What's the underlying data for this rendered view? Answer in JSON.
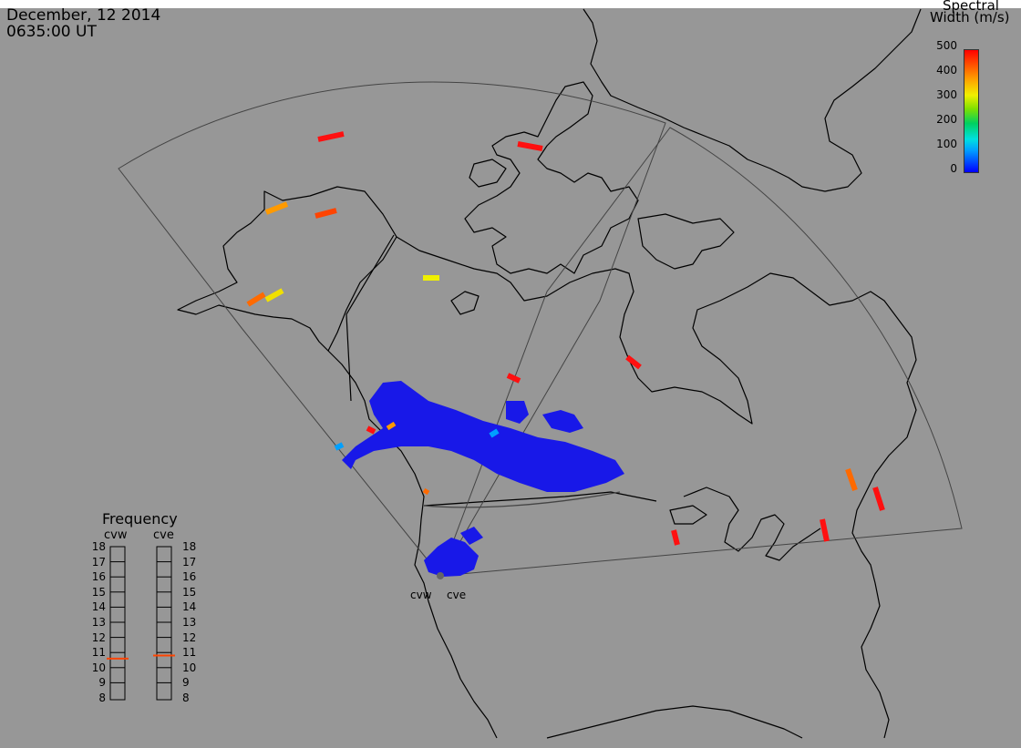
{
  "header": {
    "date": "December, 12 2014",
    "time": "0635:00 UT"
  },
  "colorbar": {
    "title_line1": "Spectral",
    "title_line2": "Width (m/s)",
    "ticks": [
      "500",
      "400",
      "300",
      "200",
      "100",
      "0"
    ],
    "range": [
      0,
      500
    ],
    "colors": [
      "#0000ff",
      "#00a0ff",
      "#00e0e0",
      "#00d060",
      "#80e000",
      "#f0f000",
      "#ff9a00",
      "#ff0000"
    ]
  },
  "frequency_panel": {
    "title": "Frequency",
    "radars": [
      {
        "label": "cvw",
        "frequency_mhz": 10.6
      },
      {
        "label": "cve",
        "frequency_mhz": 10.8
      }
    ],
    "scale_labels": [
      "18",
      "17",
      "16",
      "15",
      "14",
      "13",
      "12",
      "11",
      "10",
      "9",
      "8"
    ]
  },
  "sites": [
    {
      "label": "cvw"
    },
    {
      "label": "cve"
    }
  ],
  "colors": {
    "background": "#979797",
    "coastline": "#000000",
    "fov": "#444444",
    "marker": "#ff4400",
    "scatter_main": "#1818e8"
  }
}
